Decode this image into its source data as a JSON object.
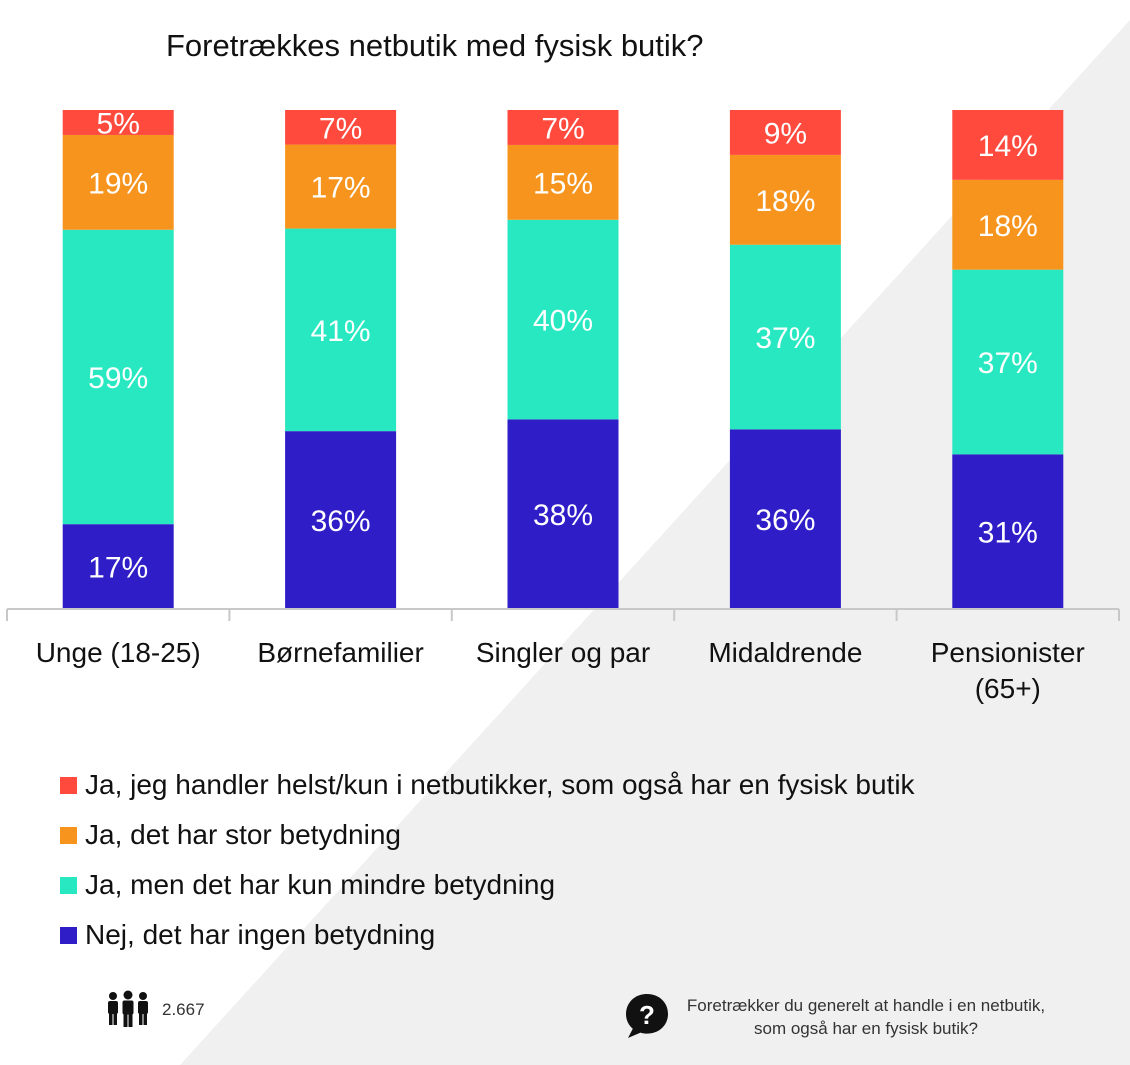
{
  "chart_data": {
    "type": "bar",
    "stacked": true,
    "title": "Foretrækkes netbutik med fysisk butik?",
    "categories": [
      "Unge (18-25)",
      "Børnefamilier",
      "Singler og par",
      "Midaldrende",
      "Pensionister (65+)"
    ],
    "series": [
      {
        "name": "Nej, det har ingen betydning",
        "color": "#2f1dc8",
        "values": [
          17,
          36,
          38,
          36,
          31
        ]
      },
      {
        "name": "Ja, men det har kun mindre betydning",
        "color": "#28e8c2",
        "values": [
          59,
          41,
          40,
          37,
          37
        ]
      },
      {
        "name": "Ja, det har stor betydning",
        "color": "#f7941d",
        "values": [
          19,
          17,
          15,
          18,
          18
        ]
      },
      {
        "name": "Ja, jeg handler helst/kun i netbutikker, som også har en fysisk butik",
        "color": "#ff4a3d",
        "values": [
          5,
          7,
          7,
          9,
          14
        ]
      }
    ],
    "value_suffix": "%",
    "ylim": [
      0,
      100
    ],
    "grid": false,
    "legend_position": "bottom"
  },
  "legend": {
    "items": [
      {
        "label": "Ja, jeg handler helst/kun i netbutikker, som også har en fysisk butik",
        "color": "#ff4a3d"
      },
      {
        "label": "Ja, det har stor betydning",
        "color": "#f7941d"
      },
      {
        "label": "Ja, men det har kun mindre betydning",
        "color": "#28e8c2"
      },
      {
        "label": "Nej, det har ingen betydning",
        "color": "#2f1dc8"
      }
    ]
  },
  "footer": {
    "respondents_icon": "people-icon",
    "respondents": "2.667",
    "question_icon": "question-bubble-icon",
    "question": "Foretrækker du generelt at handle i en netbutik, som også har en fysisk butik?"
  }
}
